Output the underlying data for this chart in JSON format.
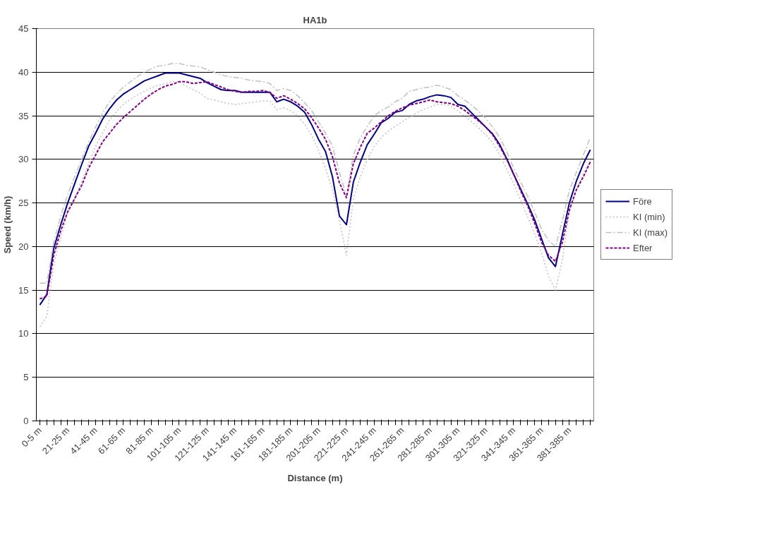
{
  "chart_data": {
    "type": "line",
    "title": "HA1b",
    "xlabel": "Distance (m)",
    "ylabel": "Speed (km/h)",
    "categories": [
      "0-5 m",
      null,
      null,
      null,
      "21-25 m",
      null,
      null,
      null,
      "41-45 m",
      null,
      null,
      null,
      "61-65 m",
      null,
      null,
      null,
      "81-85 m",
      null,
      null,
      null,
      "101-105 m",
      null,
      null,
      null,
      "121-125 m",
      null,
      null,
      null,
      "141-145 m",
      null,
      null,
      null,
      "161-165 m",
      null,
      null,
      null,
      "181-185 m",
      null,
      null,
      null,
      "201-205 m",
      null,
      null,
      null,
      "221-225 m",
      null,
      null,
      null,
      "241-245 m",
      null,
      null,
      null,
      "261-265 m",
      null,
      null,
      null,
      "281-285 m",
      null,
      null,
      null,
      "301-305 m",
      null,
      null,
      null,
      "321-325 m",
      null,
      null,
      null,
      "341-345 m",
      null,
      null,
      null,
      "361-365 m",
      null,
      null,
      null,
      "381-385 m",
      null,
      null,
      null
    ],
    "series": [
      {
        "name": "Före",
        "color": "#000080",
        "line_style": "solid",
        "values": [
          13.3,
          14.5,
          19.8,
          22.5,
          25.0,
          27.2,
          29.4,
          31.5,
          33.0,
          34.6,
          35.8,
          36.8,
          37.5,
          38.0,
          38.5,
          39.0,
          39.3,
          39.6,
          39.9,
          39.9,
          39.9,
          39.7,
          39.5,
          39.3,
          38.8,
          38.4,
          38.0,
          37.9,
          37.9,
          37.7,
          37.7,
          37.7,
          37.7,
          37.7,
          36.6,
          36.9,
          36.6,
          36.1,
          35.4,
          34.0,
          32.3,
          30.9,
          28.0,
          23.5,
          22.5,
          27.4,
          29.7,
          31.7,
          32.9,
          34.2,
          34.7,
          35.4,
          35.6,
          36.3,
          36.7,
          36.9,
          37.2,
          37.4,
          37.3,
          37.1,
          36.3,
          36.1,
          35.3,
          34.5,
          33.7,
          32.9,
          31.7,
          30.1,
          28.3,
          26.6,
          24.9,
          23.1,
          20.9,
          18.7,
          17.7,
          21.4,
          25.0,
          27.5,
          29.5,
          31.1
        ]
      },
      {
        "name": "KI (min)",
        "color": "#c0c0c0",
        "line_style": "dotted",
        "values": [
          10.8,
          12.0,
          18.0,
          21.0,
          23.8,
          25.5,
          27.5,
          29.5,
          31.5,
          33.0,
          34.5,
          35.5,
          36.3,
          36.9,
          37.4,
          37.8,
          38.2,
          38.5,
          38.7,
          38.9,
          38.9,
          38.4,
          38.0,
          37.6,
          37.0,
          36.8,
          36.6,
          36.4,
          36.3,
          36.4,
          36.5,
          36.6,
          36.7,
          36.7,
          35.7,
          35.9,
          35.6,
          35.0,
          34.0,
          32.8,
          31.0,
          29.0,
          26.5,
          23.0,
          19.0,
          25.5,
          28.0,
          30.0,
          31.5,
          32.5,
          33.2,
          33.8,
          34.3,
          34.8,
          35.3,
          35.7,
          36.0,
          36.3,
          36.3,
          36.1,
          35.6,
          34.9,
          34.3,
          33.6,
          32.8,
          31.9,
          30.5,
          28.9,
          27.2,
          25.3,
          23.4,
          21.5,
          19.3,
          16.6,
          15.0,
          18.5,
          24.0,
          26.5,
          28.5,
          29.8
        ]
      },
      {
        "name": "KI (max)",
        "color": "#c0c0c0",
        "line_style": "dashdot",
        "values": [
          15.8,
          15.8,
          20.5,
          23.5,
          26.0,
          28.0,
          30.0,
          32.0,
          33.7,
          35.3,
          36.6,
          37.5,
          38.3,
          38.9,
          39.5,
          40.0,
          40.4,
          40.7,
          40.8,
          41.0,
          41.0,
          40.8,
          40.7,
          40.6,
          40.3,
          40.0,
          39.7,
          39.5,
          39.4,
          39.3,
          39.1,
          39.0,
          38.9,
          38.7,
          37.9,
          38.1,
          37.9,
          37.3,
          36.5,
          35.6,
          34.3,
          33.0,
          31.5,
          28.5,
          25.8,
          30.5,
          32.5,
          33.8,
          35.0,
          35.6,
          36.0,
          36.6,
          37.0,
          37.8,
          38.0,
          38.2,
          38.3,
          38.5,
          38.3,
          38.0,
          37.3,
          36.8,
          36.2,
          35.5,
          34.7,
          33.7,
          32.5,
          30.9,
          29.0,
          27.4,
          25.8,
          24.0,
          22.0,
          20.7,
          20.0,
          23.0,
          26.5,
          28.5,
          30.5,
          32.5
        ]
      },
      {
        "name": "Efter",
        "color": "#800080",
        "line_style": "dashed",
        "values": [
          14.0,
          14.3,
          19.0,
          21.8,
          24.0,
          25.5,
          27.0,
          29.0,
          30.5,
          32.0,
          33.0,
          34.0,
          34.8,
          35.5,
          36.2,
          36.9,
          37.5,
          38.0,
          38.4,
          38.6,
          38.9,
          38.9,
          38.7,
          38.8,
          38.9,
          38.6,
          38.3,
          38.0,
          37.8,
          37.7,
          37.8,
          37.8,
          37.9,
          37.7,
          37.0,
          37.3,
          36.9,
          36.4,
          35.8,
          34.8,
          33.6,
          32.3,
          30.3,
          27.3,
          25.6,
          29.5,
          31.4,
          33.0,
          33.6,
          34.3,
          35.0,
          35.5,
          35.9,
          36.2,
          36.4,
          36.6,
          36.8,
          36.6,
          36.5,
          36.4,
          36.1,
          35.6,
          35.0,
          34.4,
          33.7,
          32.8,
          31.5,
          30.0,
          28.3,
          26.4,
          24.7,
          22.7,
          20.5,
          19.0,
          18.3,
          20.5,
          24.2,
          26.5,
          28.0,
          29.7
        ]
      }
    ],
    "ylim": [
      0,
      45
    ],
    "yticks": [
      0,
      5,
      10,
      15,
      20,
      25,
      30,
      35,
      40,
      45
    ],
    "grid": "y",
    "legend": "right",
    "marker": "none"
  }
}
